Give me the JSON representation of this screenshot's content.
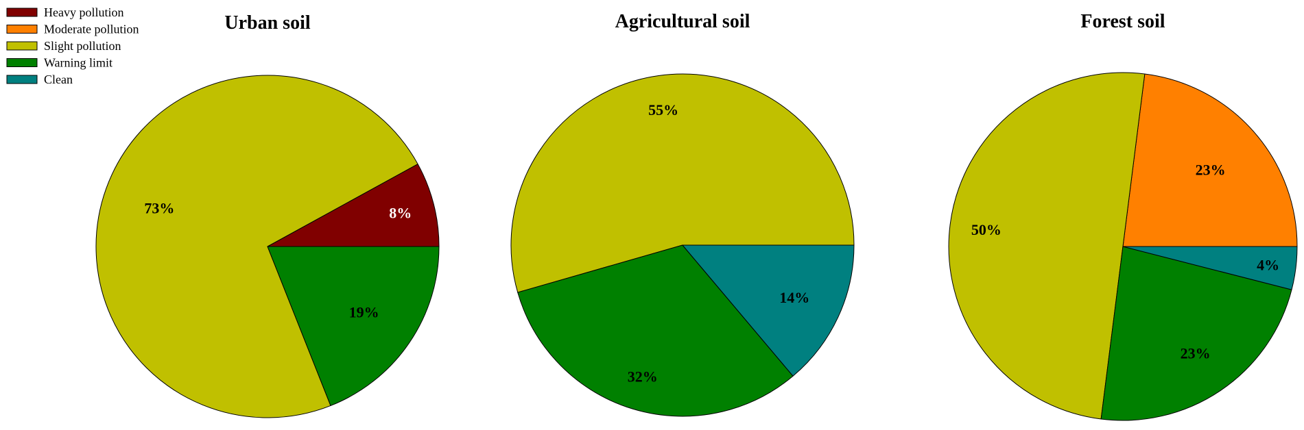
{
  "legend": [
    {
      "label": "Heavy pollution",
      "color": "#800000"
    },
    {
      "label": "Moderate pollution",
      "color": "#FF8000"
    },
    {
      "label": "Slight pollution",
      "color": "#C0C000"
    },
    {
      "label": "Warning limit",
      "color": "#008000"
    },
    {
      "label": "Clean",
      "color": "#008080"
    }
  ],
  "chart_data": [
    {
      "type": "pie",
      "title": "Urban soil",
      "slices": [
        {
          "name": "Heavy pollution",
          "value": 8,
          "label": "8%",
          "color": "#800000",
          "label_color": "#ffffff"
        },
        {
          "name": "Slight pollution",
          "value": 73,
          "label": "73%",
          "color": "#C0C000",
          "label_color": "#000000"
        },
        {
          "name": "Warning limit",
          "value": 19,
          "label": "19%",
          "color": "#008000",
          "label_color": "#000000"
        }
      ]
    },
    {
      "type": "pie",
      "title": "Agricultural soil",
      "slices": [
        {
          "name": "Slight pollution",
          "value": 55,
          "label": "55%",
          "color": "#C0C000",
          "label_color": "#000000"
        },
        {
          "name": "Warning limit",
          "value": 32,
          "label": "32%",
          "color": "#008000",
          "label_color": "#000000"
        },
        {
          "name": "Clean",
          "value": 14,
          "label": "14%",
          "color": "#008080",
          "label_color": "#000000"
        }
      ]
    },
    {
      "type": "pie",
      "title": "Forest soil",
      "slices": [
        {
          "name": "Moderate pollution",
          "value": 23,
          "label": "23%",
          "color": "#FF8000",
          "label_color": "#000000"
        },
        {
          "name": "Slight pollution",
          "value": 50,
          "label": "50%",
          "color": "#C0C000",
          "label_color": "#000000"
        },
        {
          "name": "Warning limit",
          "value": 23,
          "label": "23%",
          "color": "#008000",
          "label_color": "#000000"
        },
        {
          "name": "Clean",
          "value": 4,
          "label": "4%",
          "color": "#008080",
          "label_color": "#000000"
        }
      ]
    }
  ]
}
